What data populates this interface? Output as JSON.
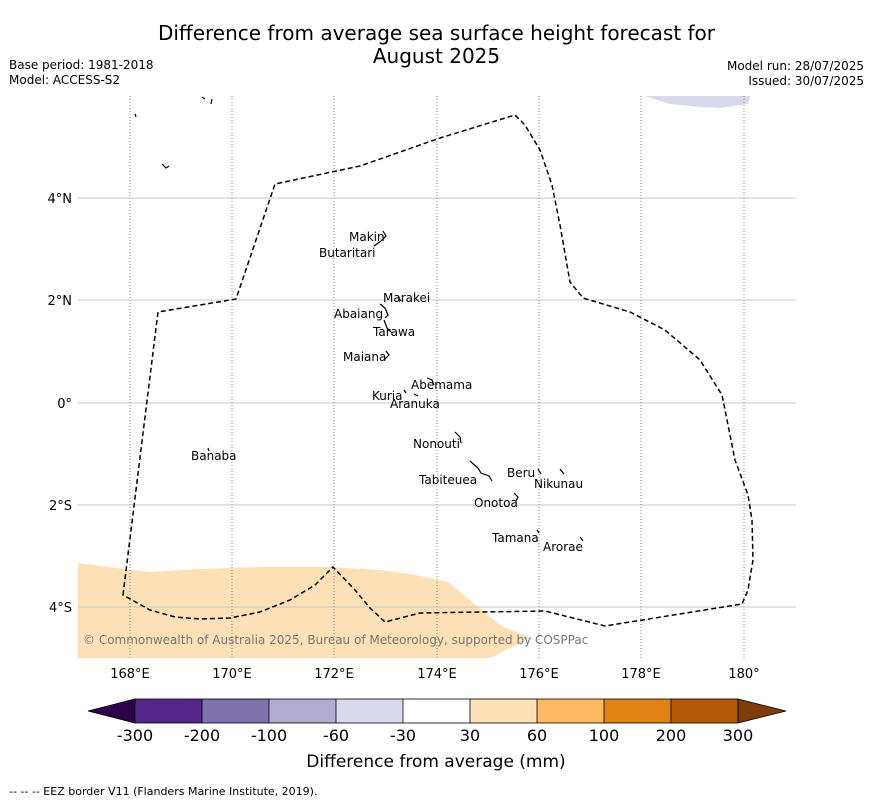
{
  "title_line1": "Difference from average sea surface height forecast for",
  "title_line2": "August 2025",
  "meta_left": [
    "Base period: 1981-2018",
    "Model: ACCESS-S2"
  ],
  "meta_right": [
    "Model run: 28/07/2025",
    "Issued: 30/07/2025"
  ],
  "map": {
    "lon_labels": [
      "168°E",
      "170°E",
      "172°E",
      "174°E",
      "176°E",
      "178°E",
      "180°"
    ],
    "lat_labels": [
      "4°N",
      "2°N",
      "0°",
      "2°S",
      "4°S"
    ],
    "islands": [
      "Makin",
      "Butaritari",
      "Marakei",
      "Abaiang",
      "Tarawa",
      "Maiana",
      "Abemama",
      "Kuria",
      "Aranuka",
      "Nonouti",
      "Banaba",
      "Beru",
      "Nikunau",
      "Tabiteuea",
      "Onotoa",
      "Tamana",
      "Arorae"
    ],
    "copyright": "© Commonwealth of Australia 2025, Bureau of Meteorology, supported by COSPPac",
    "colors": {
      "orange_light": "#fde0b6",
      "purple_light": "#d8d9eb",
      "eez_border": "#000000"
    }
  },
  "colorbar": {
    "ticks": [
      "-300",
      "-200",
      "-100",
      "-60",
      "-30",
      "30",
      "60",
      "100",
      "200",
      "300"
    ],
    "colors": [
      "#2d004b",
      "#542788",
      "#8073ac",
      "#b2abd2",
      "#d8daeb",
      "#ffffff",
      "#fee0b6",
      "#fdb863",
      "#e08214",
      "#b35806",
      "#7f3b08"
    ],
    "label": "Difference from average (mm)"
  },
  "footer": "--  --  -- EEZ border V11 (Flanders Marine Institute, 2019)."
}
